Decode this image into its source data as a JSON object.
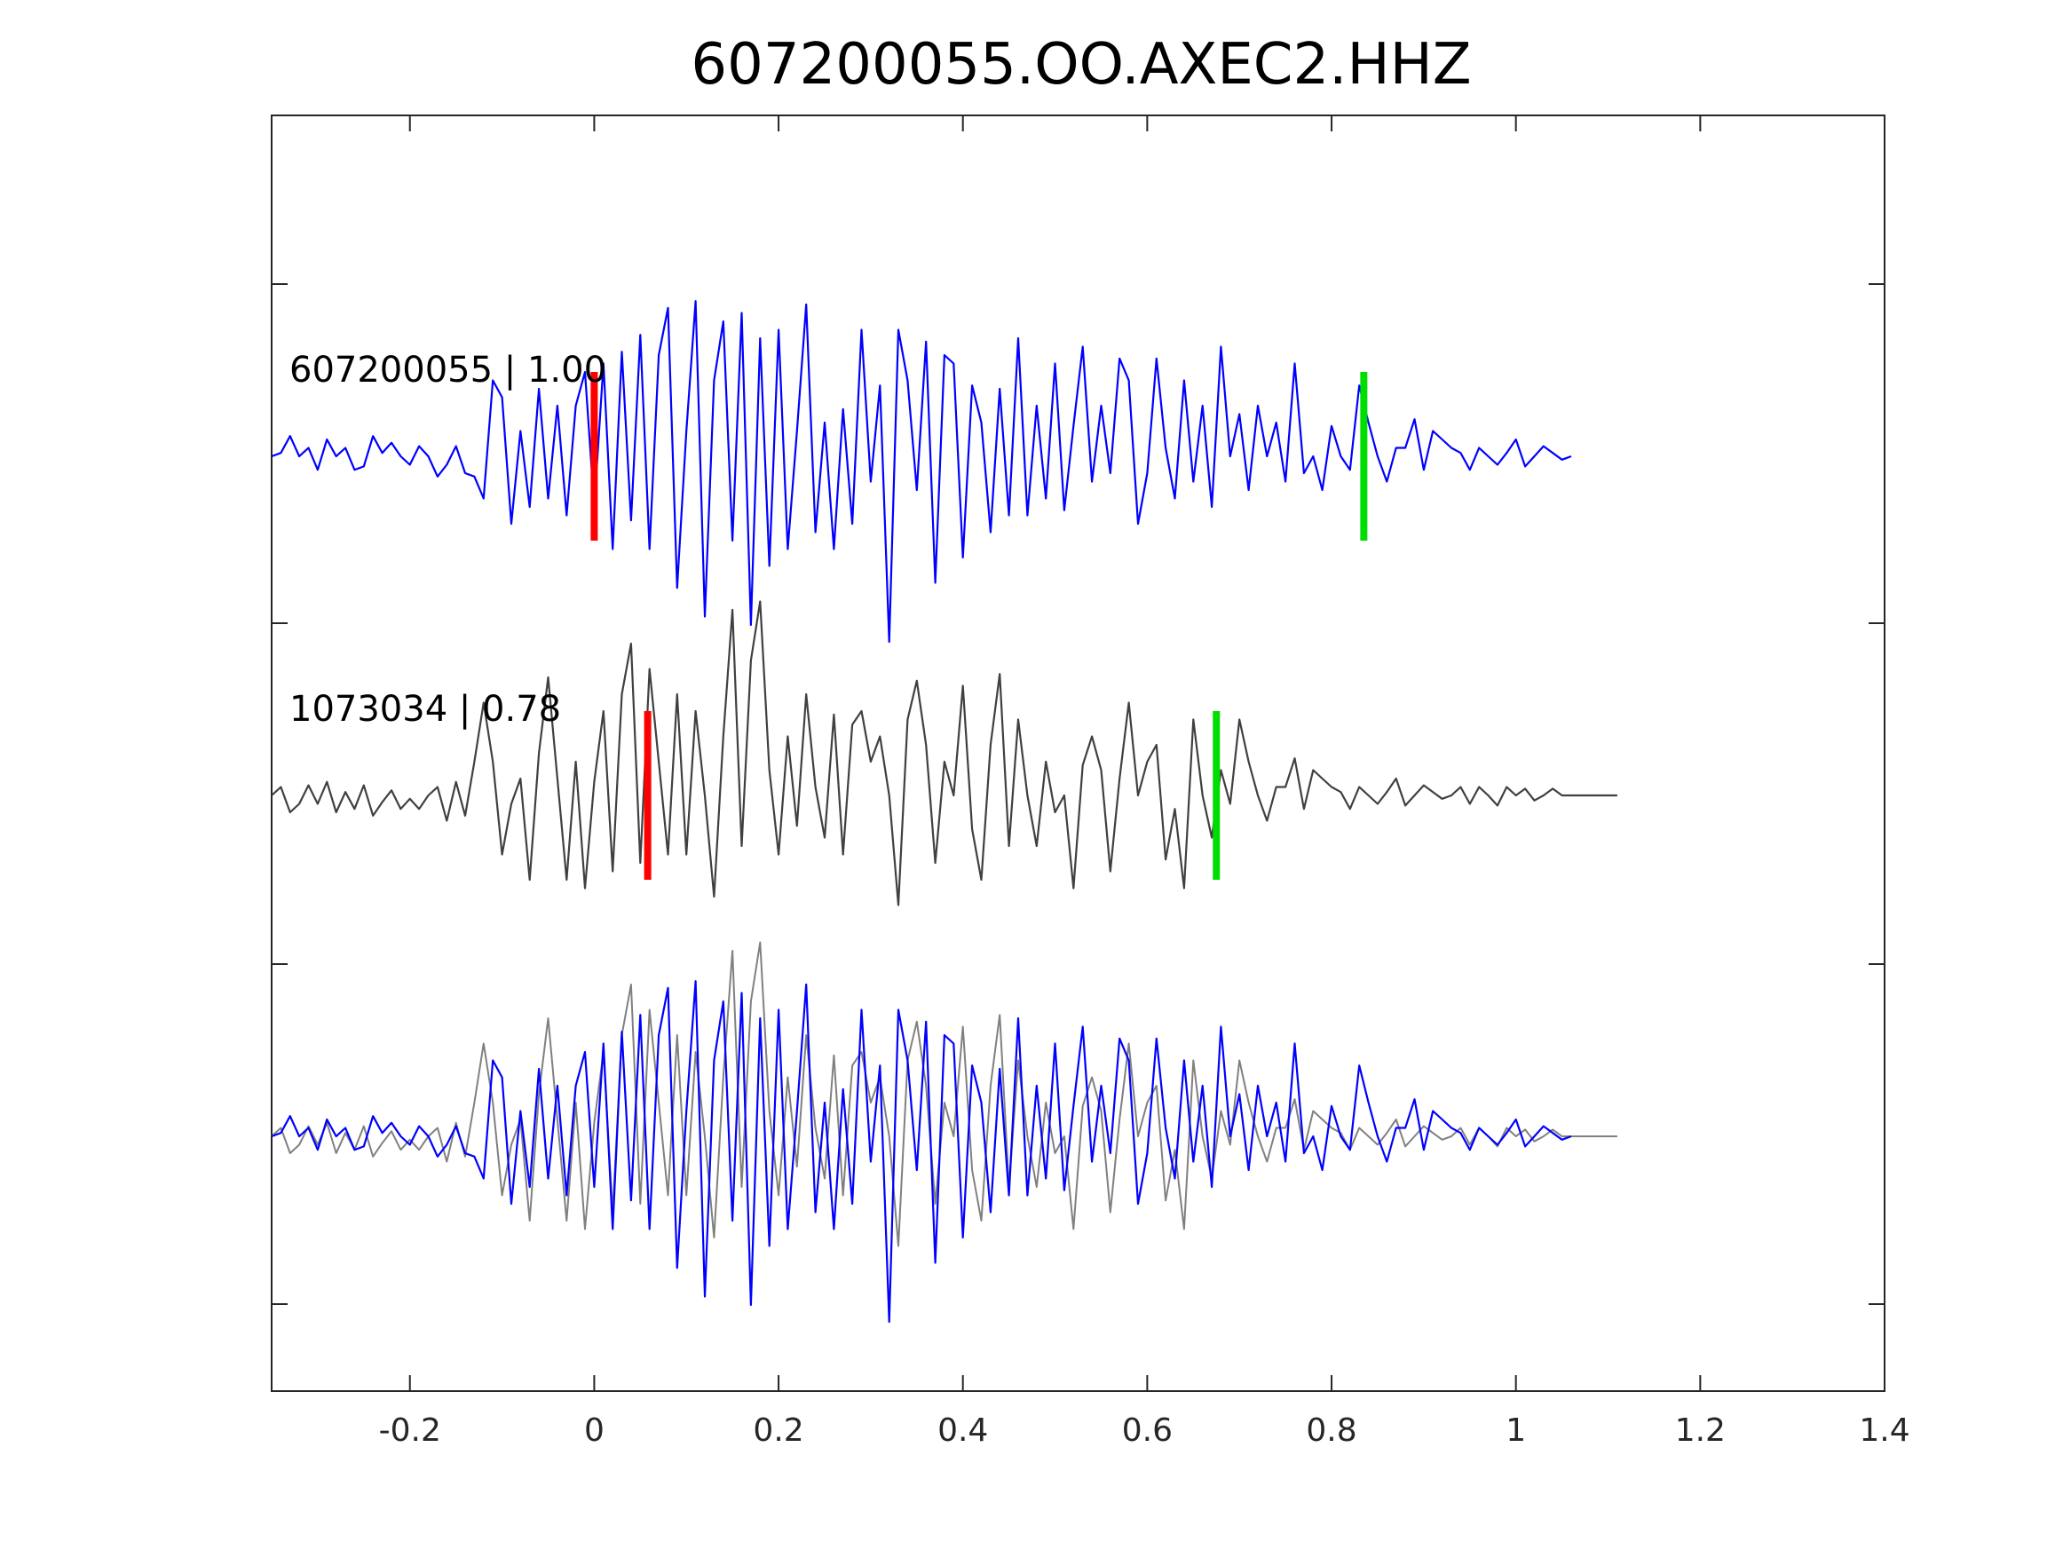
{
  "chart_data": {
    "type": "line",
    "title": "607200055.OO.AXEC2.HHZ",
    "xlabel": "",
    "ylabel": "",
    "xlim": [
      -0.35,
      1.4
    ],
    "x_ticks": [
      -0.2,
      0,
      0.2,
      0.4,
      0.6,
      0.8,
      1,
      1.2,
      1.4
    ],
    "x_tick_labels": [
      "-0.2",
      "0",
      "0.2",
      "0.4",
      "0.6",
      "0.8",
      "1",
      "1.2",
      "1.4"
    ],
    "y_tick_count": 7,
    "grid": false,
    "sample_interval": 0.01,
    "traces": [
      {
        "label": "607200055 | 1.00",
        "color": "#0000ff",
        "x_start": -0.35,
        "pick_p": 0.0,
        "pick_s": 0.835,
        "values": [
          0.0,
          0.02,
          0.12,
          0.0,
          0.05,
          -0.08,
          0.1,
          0.0,
          0.05,
          -0.08,
          -0.06,
          0.12,
          0.02,
          0.08,
          0.0,
          -0.05,
          0.06,
          0.0,
          -0.12,
          -0.05,
          0.06,
          -0.1,
          -0.12,
          -0.25,
          0.45,
          0.35,
          -0.4,
          0.15,
          -0.3,
          0.4,
          -0.25,
          0.3,
          -0.35,
          0.3,
          0.5,
          -0.3,
          0.55,
          -0.55,
          0.62,
          -0.38,
          0.72,
          -0.55,
          0.6,
          0.88,
          -0.78,
          0.15,
          0.92,
          -0.95,
          0.45,
          0.8,
          -0.5,
          0.85,
          -1.0,
          0.7,
          -0.65,
          0.75,
          -0.55,
          0.15,
          0.9,
          -0.45,
          0.2,
          -0.55,
          0.28,
          -0.4,
          0.75,
          -0.15,
          0.42,
          -1.1,
          0.75,
          0.45,
          -0.2,
          0.68,
          -0.75,
          0.6,
          0.55,
          -0.6,
          0.42,
          0.2,
          -0.45,
          0.4,
          -0.35,
          0.7,
          -0.35,
          0.3,
          -0.25,
          0.55,
          -0.32,
          0.18,
          0.65,
          -0.15,
          0.3,
          -0.1,
          0.58,
          0.45,
          -0.4,
          -0.1,
          0.58,
          0.05,
          -0.25,
          0.45,
          -0.15,
          0.3,
          -0.3,
          0.65,
          0.0,
          0.25,
          -0.2,
          0.3,
          0.0,
          0.2,
          -0.15,
          0.55,
          -0.1,
          0.0,
          -0.2,
          0.18,
          0.0,
          -0.08,
          0.42,
          0.2,
          0.0,
          -0.15,
          0.05,
          0.05,
          0.22,
          -0.08,
          0.15,
          0.1,
          0.05,
          0.02,
          -0.08,
          0.05,
          0.0,
          -0.05,
          0.02,
          0.1,
          -0.06,
          0.0,
          0.06,
          0.02,
          -0.02,
          0.0
        ]
      },
      {
        "label": "1073034 | 0.78",
        "color": "#404040",
        "x_start": -0.35,
        "pick_p": 0.058,
        "pick_s": 0.675,
        "values": [
          0.0,
          0.05,
          -0.1,
          -0.05,
          0.06,
          -0.05,
          0.08,
          -0.1,
          0.02,
          -0.08,
          0.06,
          -0.12,
          -0.04,
          0.03,
          -0.08,
          -0.02,
          -0.08,
          0.0,
          0.05,
          -0.15,
          0.08,
          -0.12,
          0.2,
          0.55,
          0.2,
          -0.35,
          -0.05,
          0.1,
          -0.5,
          0.25,
          0.7,
          0.1,
          -0.5,
          0.2,
          -0.55,
          0.08,
          0.5,
          -0.45,
          0.6,
          0.9,
          -0.4,
          0.75,
          0.2,
          -0.35,
          0.6,
          -0.35,
          0.5,
          0.0,
          -0.6,
          0.35,
          1.1,
          -0.3,
          0.8,
          1.15,
          0.15,
          -0.35,
          0.35,
          -0.18,
          0.6,
          0.05,
          -0.25,
          0.48,
          -0.35,
          0.42,
          0.5,
          0.2,
          0.35,
          0.0,
          -0.65,
          0.45,
          0.68,
          0.3,
          -0.4,
          0.2,
          0.0,
          0.65,
          -0.2,
          -0.5,
          0.3,
          0.72,
          -0.3,
          0.45,
          0.0,
          -0.3,
          0.2,
          -0.1,
          0.0,
          -0.55,
          0.18,
          0.35,
          0.15,
          -0.45,
          0.1,
          0.55,
          0.0,
          0.2,
          0.3,
          -0.38,
          -0.08,
          -0.55,
          0.45,
          0.0,
          -0.25,
          0.15,
          -0.05,
          0.45,
          0.2,
          0.0,
          -0.15,
          0.05,
          0.05,
          0.22,
          -0.08,
          0.15,
          0.1,
          0.05,
          0.02,
          -0.08,
          0.05,
          0.0,
          -0.05,
          0.02,
          0.1,
          -0.06,
          0.0,
          0.06,
          0.02,
          -0.02,
          0.0,
          0.05,
          -0.05,
          0.05,
          0.0,
          -0.06,
          0.05,
          0.0,
          0.04,
          -0.03,
          0.0,
          0.04,
          0.0,
          0.0,
          0.0,
          0.0,
          0.0,
          0.0,
          0.0
        ]
      }
    ]
  }
}
